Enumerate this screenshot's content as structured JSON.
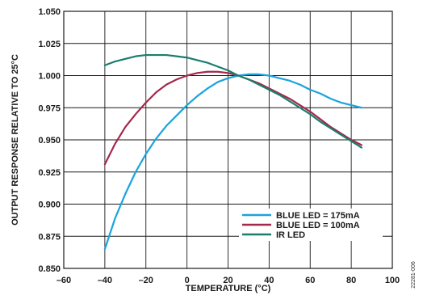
{
  "figure_id": "22281-006",
  "chart_data": {
    "type": "line",
    "title": "",
    "xlabel": "TEMPERATURE (°C)",
    "ylabel": "OUTPUT RESPONSE RELATIVE TO 25°C",
    "xlim": [
      -60,
      100
    ],
    "ylim": [
      0.85,
      1.05
    ],
    "x_ticks": [
      "–60",
      "–40",
      "–20",
      "0",
      "20",
      "40",
      "60",
      "80",
      "100"
    ],
    "y_ticks": [
      "0.850",
      "0.875",
      "0.900",
      "0.925",
      "0.950",
      "0.975",
      "1.000",
      "1.025",
      "1.050"
    ],
    "grid": true,
    "legend_position": "lower-right",
    "series": [
      {
        "name": "BLUE LED = 175mA",
        "color": "#1aa3dc",
        "x": [
          -40,
          -35,
          -30,
          -25,
          -20,
          -15,
          -10,
          -5,
          0,
          5,
          10,
          15,
          20,
          25,
          30,
          35,
          40,
          45,
          50,
          55,
          60,
          65,
          70,
          75,
          80,
          85
        ],
        "y": [
          0.865,
          0.889,
          0.908,
          0.925,
          0.939,
          0.951,
          0.961,
          0.969,
          0.977,
          0.984,
          0.99,
          0.995,
          0.998,
          1.0,
          1.001,
          1.001,
          1.0,
          0.998,
          0.996,
          0.993,
          0.989,
          0.986,
          0.982,
          0.979,
          0.977,
          0.975
        ]
      },
      {
        "name": "BLUE LED = 100mA",
        "color": "#a3294b",
        "x": [
          -40,
          -35,
          -30,
          -25,
          -20,
          -15,
          -10,
          -5,
          0,
          5,
          10,
          15,
          20,
          25,
          30,
          35,
          40,
          45,
          50,
          55,
          60,
          65,
          70,
          75,
          80,
          85
        ],
        "y": [
          0.931,
          0.947,
          0.96,
          0.97,
          0.979,
          0.987,
          0.993,
          0.997,
          1.0,
          1.002,
          1.003,
          1.003,
          1.002,
          1.0,
          0.997,
          0.994,
          0.99,
          0.986,
          0.982,
          0.977,
          0.972,
          0.966,
          0.96,
          0.955,
          0.95,
          0.946
        ]
      },
      {
        "name": "IR LED",
        "color": "#1a7d6e",
        "x": [
          -40,
          -35,
          -30,
          -25,
          -20,
          -15,
          -10,
          -5,
          0,
          5,
          10,
          15,
          20,
          25,
          30,
          35,
          40,
          45,
          50,
          55,
          60,
          65,
          70,
          75,
          80,
          85
        ],
        "y": [
          1.008,
          1.011,
          1.013,
          1.015,
          1.016,
          1.016,
          1.016,
          1.015,
          1.014,
          1.012,
          1.01,
          1.007,
          1.004,
          1.0,
          0.997,
          0.993,
          0.989,
          0.985,
          0.98,
          0.975,
          0.97,
          0.964,
          0.959,
          0.954,
          0.949,
          0.944
        ]
      }
    ]
  }
}
